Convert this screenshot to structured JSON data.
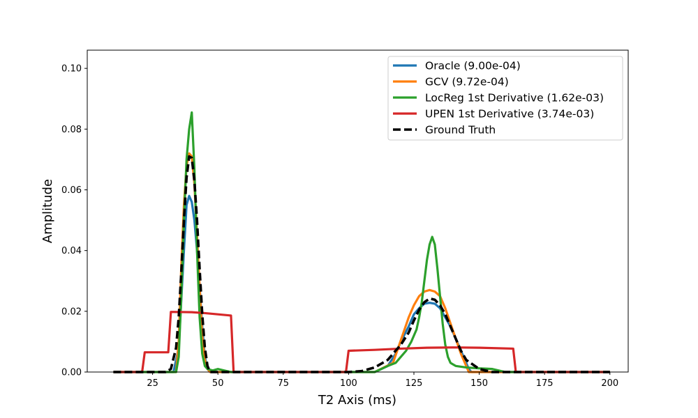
{
  "chart_data": {
    "type": "line",
    "xlabel": "T2 Axis (ms)",
    "ylabel": "Amplitude",
    "xlim": [
      0,
      207
    ],
    "ylim": [
      0,
      0.106
    ],
    "xticks": [
      25,
      50,
      75,
      100,
      125,
      150,
      175,
      200
    ],
    "yticks": [
      0.0,
      0.02,
      0.04,
      0.06,
      0.08,
      0.1
    ],
    "xtick_labels": [
      "25",
      "50",
      "75",
      "100",
      "125",
      "150",
      "175",
      "200"
    ],
    "ytick_labels": [
      "0.00",
      "0.02",
      "0.04",
      "0.06",
      "0.08",
      "0.10"
    ],
    "legend_position": "top-right",
    "grid": false,
    "series": [
      {
        "name": "Oracle (9.00e-04)",
        "color": "#1f77b4",
        "style": "solid",
        "x": [
          10,
          33,
          35,
          37,
          38,
          39,
          40,
          41,
          42,
          43,
          44,
          45,
          46,
          47,
          50,
          100,
          110,
          115,
          118,
          120,
          123,
          125,
          127,
          129,
          131,
          133,
          135,
          137,
          139,
          141,
          143,
          145,
          146,
          147,
          150,
          200
        ],
        "y": [
          0,
          0,
          0.008,
          0.04,
          0.055,
          0.058,
          0.056,
          0.05,
          0.04,
          0.028,
          0.015,
          0.005,
          0.001,
          0,
          0,
          0,
          0,
          0.002,
          0.006,
          0.01,
          0.015,
          0.019,
          0.021,
          0.0225,
          0.0228,
          0.0225,
          0.021,
          0.018,
          0.015,
          0.011,
          0.007,
          0.003,
          0.001,
          0,
          0,
          0
        ]
      },
      {
        "name": "GCV (9.72e-04)",
        "color": "#ff7f0e",
        "style": "solid",
        "x": [
          10,
          34,
          35,
          36,
          37,
          38,
          39,
          40,
          41,
          42,
          43,
          44,
          45,
          46,
          47,
          50,
          100,
          110,
          117,
          119,
          121,
          123,
          125,
          127,
          129,
          131,
          133,
          135,
          137,
          139,
          141,
          143,
          145,
          146,
          150,
          200
        ],
        "y": [
          0,
          0,
          0.01,
          0.035,
          0.055,
          0.068,
          0.072,
          0.071,
          0.062,
          0.045,
          0.028,
          0.012,
          0.004,
          0.001,
          0,
          0,
          0,
          0,
          0.003,
          0.008,
          0.013,
          0.018,
          0.022,
          0.025,
          0.0265,
          0.027,
          0.0265,
          0.025,
          0.021,
          0.016,
          0.011,
          0.006,
          0.002,
          0,
          0,
          0
        ]
      },
      {
        "name": "LocReg 1st Derivative (1.62e-03)",
        "color": "#2ca02c",
        "style": "solid",
        "x": [
          10,
          34,
          35,
          36,
          37,
          38,
          39,
          40,
          41,
          42,
          43,
          44,
          45,
          46,
          48,
          50,
          55,
          100,
          110,
          115,
          118,
          120,
          122,
          124,
          126,
          127,
          128,
          129,
          130,
          131,
          132,
          133,
          134,
          135,
          136,
          137,
          138,
          139,
          140,
          141,
          145,
          150,
          155,
          160,
          200
        ],
        "y": [
          0,
          0,
          0.005,
          0.025,
          0.05,
          0.07,
          0.08,
          0.0855,
          0.067,
          0.04,
          0.018,
          0.006,
          0.002,
          0.001,
          0.0005,
          0.001,
          0,
          0,
          0,
          0.002,
          0.003,
          0.005,
          0.007,
          0.01,
          0.014,
          0.018,
          0.023,
          0.03,
          0.037,
          0.042,
          0.0445,
          0.042,
          0.034,
          0.025,
          0.016,
          0.009,
          0.005,
          0.003,
          0.0025,
          0.002,
          0.0015,
          0.0012,
          0.001,
          0,
          0
        ]
      },
      {
        "name": "UPEN 1st Derivative (3.74e-03)",
        "color": "#d62728",
        "style": "solid",
        "x": [
          10,
          21,
          22,
          31,
          32,
          40,
          45,
          50,
          55,
          56,
          99,
          100,
          110,
          120,
          130,
          140,
          150,
          163,
          164,
          200
        ],
        "y": [
          0,
          0,
          0.0065,
          0.0065,
          0.0198,
          0.0197,
          0.0194,
          0.019,
          0.0186,
          0,
          0,
          0.007,
          0.0073,
          0.0077,
          0.008,
          0.0081,
          0.008,
          0.0077,
          0,
          0
        ]
      },
      {
        "name": "Ground Truth",
        "color": "#000000",
        "style": "dashed",
        "x": [
          10,
          30,
          32,
          34,
          35,
          36,
          37,
          38,
          39,
          40,
          41,
          42,
          43,
          44,
          45,
          46,
          47,
          50,
          100,
          105,
          110,
          115,
          120,
          123,
          125,
          127,
          129,
          131,
          133,
          135,
          137,
          139,
          141,
          143,
          145,
          150,
          155,
          200
        ],
        "y": [
          0,
          0,
          0.001,
          0.008,
          0.018,
          0.033,
          0.05,
          0.064,
          0.071,
          0.0705,
          0.063,
          0.05,
          0.034,
          0.019,
          0.008,
          0.002,
          0,
          0,
          0,
          0.0003,
          0.0015,
          0.004,
          0.009,
          0.013,
          0.017,
          0.0205,
          0.023,
          0.0242,
          0.0238,
          0.022,
          0.019,
          0.015,
          0.011,
          0.007,
          0.004,
          0.001,
          0,
          0
        ]
      }
    ]
  }
}
